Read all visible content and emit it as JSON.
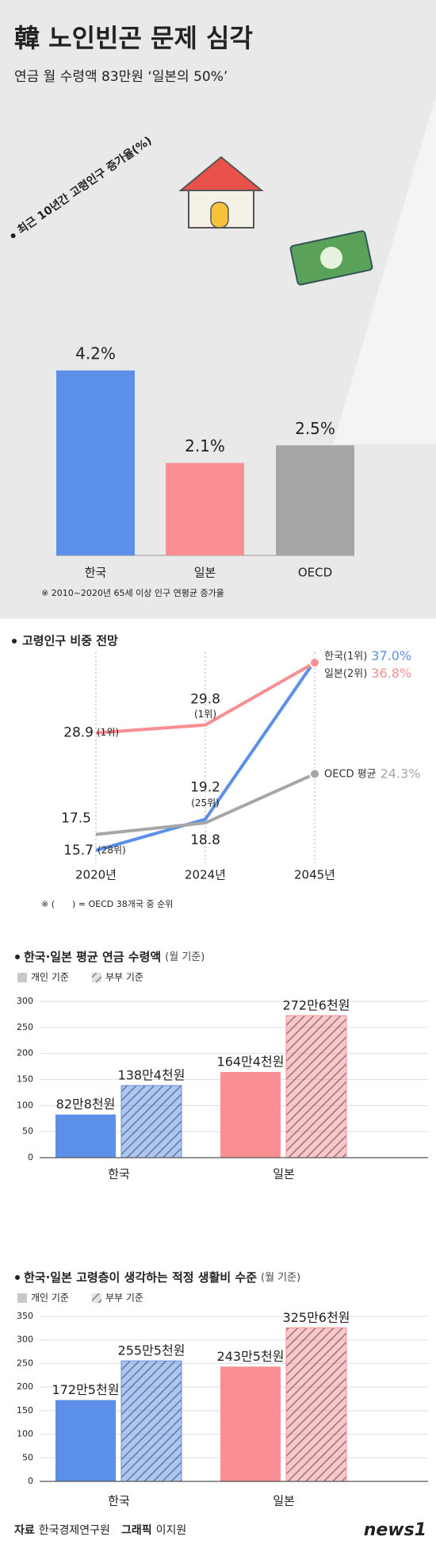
{
  "header": {
    "title": "韓 노인빈곤 문제 심각",
    "subtitle": "연금 월 수령액 83만원 ‘일본의 50%’"
  },
  "chart_data": [
    {
      "type": "bar",
      "title": "최근 10년간 고령인구 증가율(%)",
      "categories": [
        "한국",
        "일본",
        "OECD"
      ],
      "values": [
        4.2,
        2.1,
        2.5
      ],
      "value_labels": [
        "4.2%",
        "2.1%",
        "2.5%"
      ],
      "colors": [
        "#5b8fe8",
        "#f98f92",
        "#a6a6a6"
      ],
      "note": "※ 2010~2020년 65세 이상 인구 연평균 증가율"
    },
    {
      "type": "line",
      "title": "고령인구 비중 전망",
      "categories": [
        "2020년",
        "2024년",
        "2045년"
      ],
      "series": [
        {
          "name": "한국(1위)",
          "color": "#5b8fe8",
          "values": [
            15.7,
            19.2,
            37.0
          ],
          "value_labels": [
            "15.7",
            "19.2",
            "37.0%"
          ],
          "ranks": [
            "(28위)",
            "(25위)",
            null
          ]
        },
        {
          "name": "일본(2위)",
          "color": "#f98f92",
          "values": [
            28.9,
            29.8,
            36.8
          ],
          "value_labels": [
            "28.9",
            "29.8",
            "36.8%"
          ],
          "ranks": [
            "(1위)",
            "(1위)",
            null
          ]
        },
        {
          "name": "OECD 평균",
          "color": "#a6a6a6",
          "values": [
            17.5,
            18.8,
            24.3
          ],
          "value_labels": [
            "17.5",
            "18.8",
            "24.3%"
          ]
        }
      ],
      "note": "※ (　　) = OECD 38개국 중 순위"
    },
    {
      "type": "grouped_bar",
      "title": "한국·일본 평균 연금 수령액",
      "unit": "(월 기준)",
      "categories": [
        "한국",
        "일본"
      ],
      "category_colors": [
        "#5b8fe8",
        "#f98f92"
      ],
      "series": [
        {
          "name": "개인 기준",
          "color": "#c8c8c8",
          "pattern": "solid",
          "values": [
            82.8,
            164.4
          ],
          "value_labels": [
            "82만8천원",
            "164만4천원"
          ]
        },
        {
          "name": "부부 기준",
          "color": "#c8c8c8",
          "pattern": "hatch",
          "values": [
            138.4,
            272.6
          ],
          "value_labels": [
            "138만4천원",
            "272만6천원"
          ]
        }
      ],
      "ylim": [
        0,
        300
      ],
      "yticks": [
        0,
        50,
        100,
        150,
        200,
        250,
        300
      ],
      "grid": true
    },
    {
      "type": "grouped_bar",
      "title": "한국·일본 고령층이 생각하는 적정 생활비 수준",
      "unit": "(월 기준)",
      "categories": [
        "한국",
        "일본"
      ],
      "category_colors": [
        "#5b8fe8",
        "#f98f92"
      ],
      "series": [
        {
          "name": "개인 기준",
          "color": "#c8c8c8",
          "pattern": "solid",
          "values": [
            172.5,
            243.5
          ],
          "value_labels": [
            "172만5천원",
            "243만5천원"
          ]
        },
        {
          "name": "부부 기준",
          "color": "#c8c8c8",
          "pattern": "hatch",
          "values": [
            255.5,
            325.6
          ],
          "value_labels": [
            "255만5천원",
            "325만6천원"
          ]
        }
      ],
      "ylim": [
        0,
        350
      ],
      "yticks": [
        0,
        50,
        100,
        150,
        200,
        250,
        300,
        350
      ],
      "grid": true
    }
  ],
  "footer": {
    "source_label": "자료",
    "source": "한국경제연구원",
    "graphic_label": "그래픽",
    "graphic": "이지원",
    "logo": "news1"
  }
}
